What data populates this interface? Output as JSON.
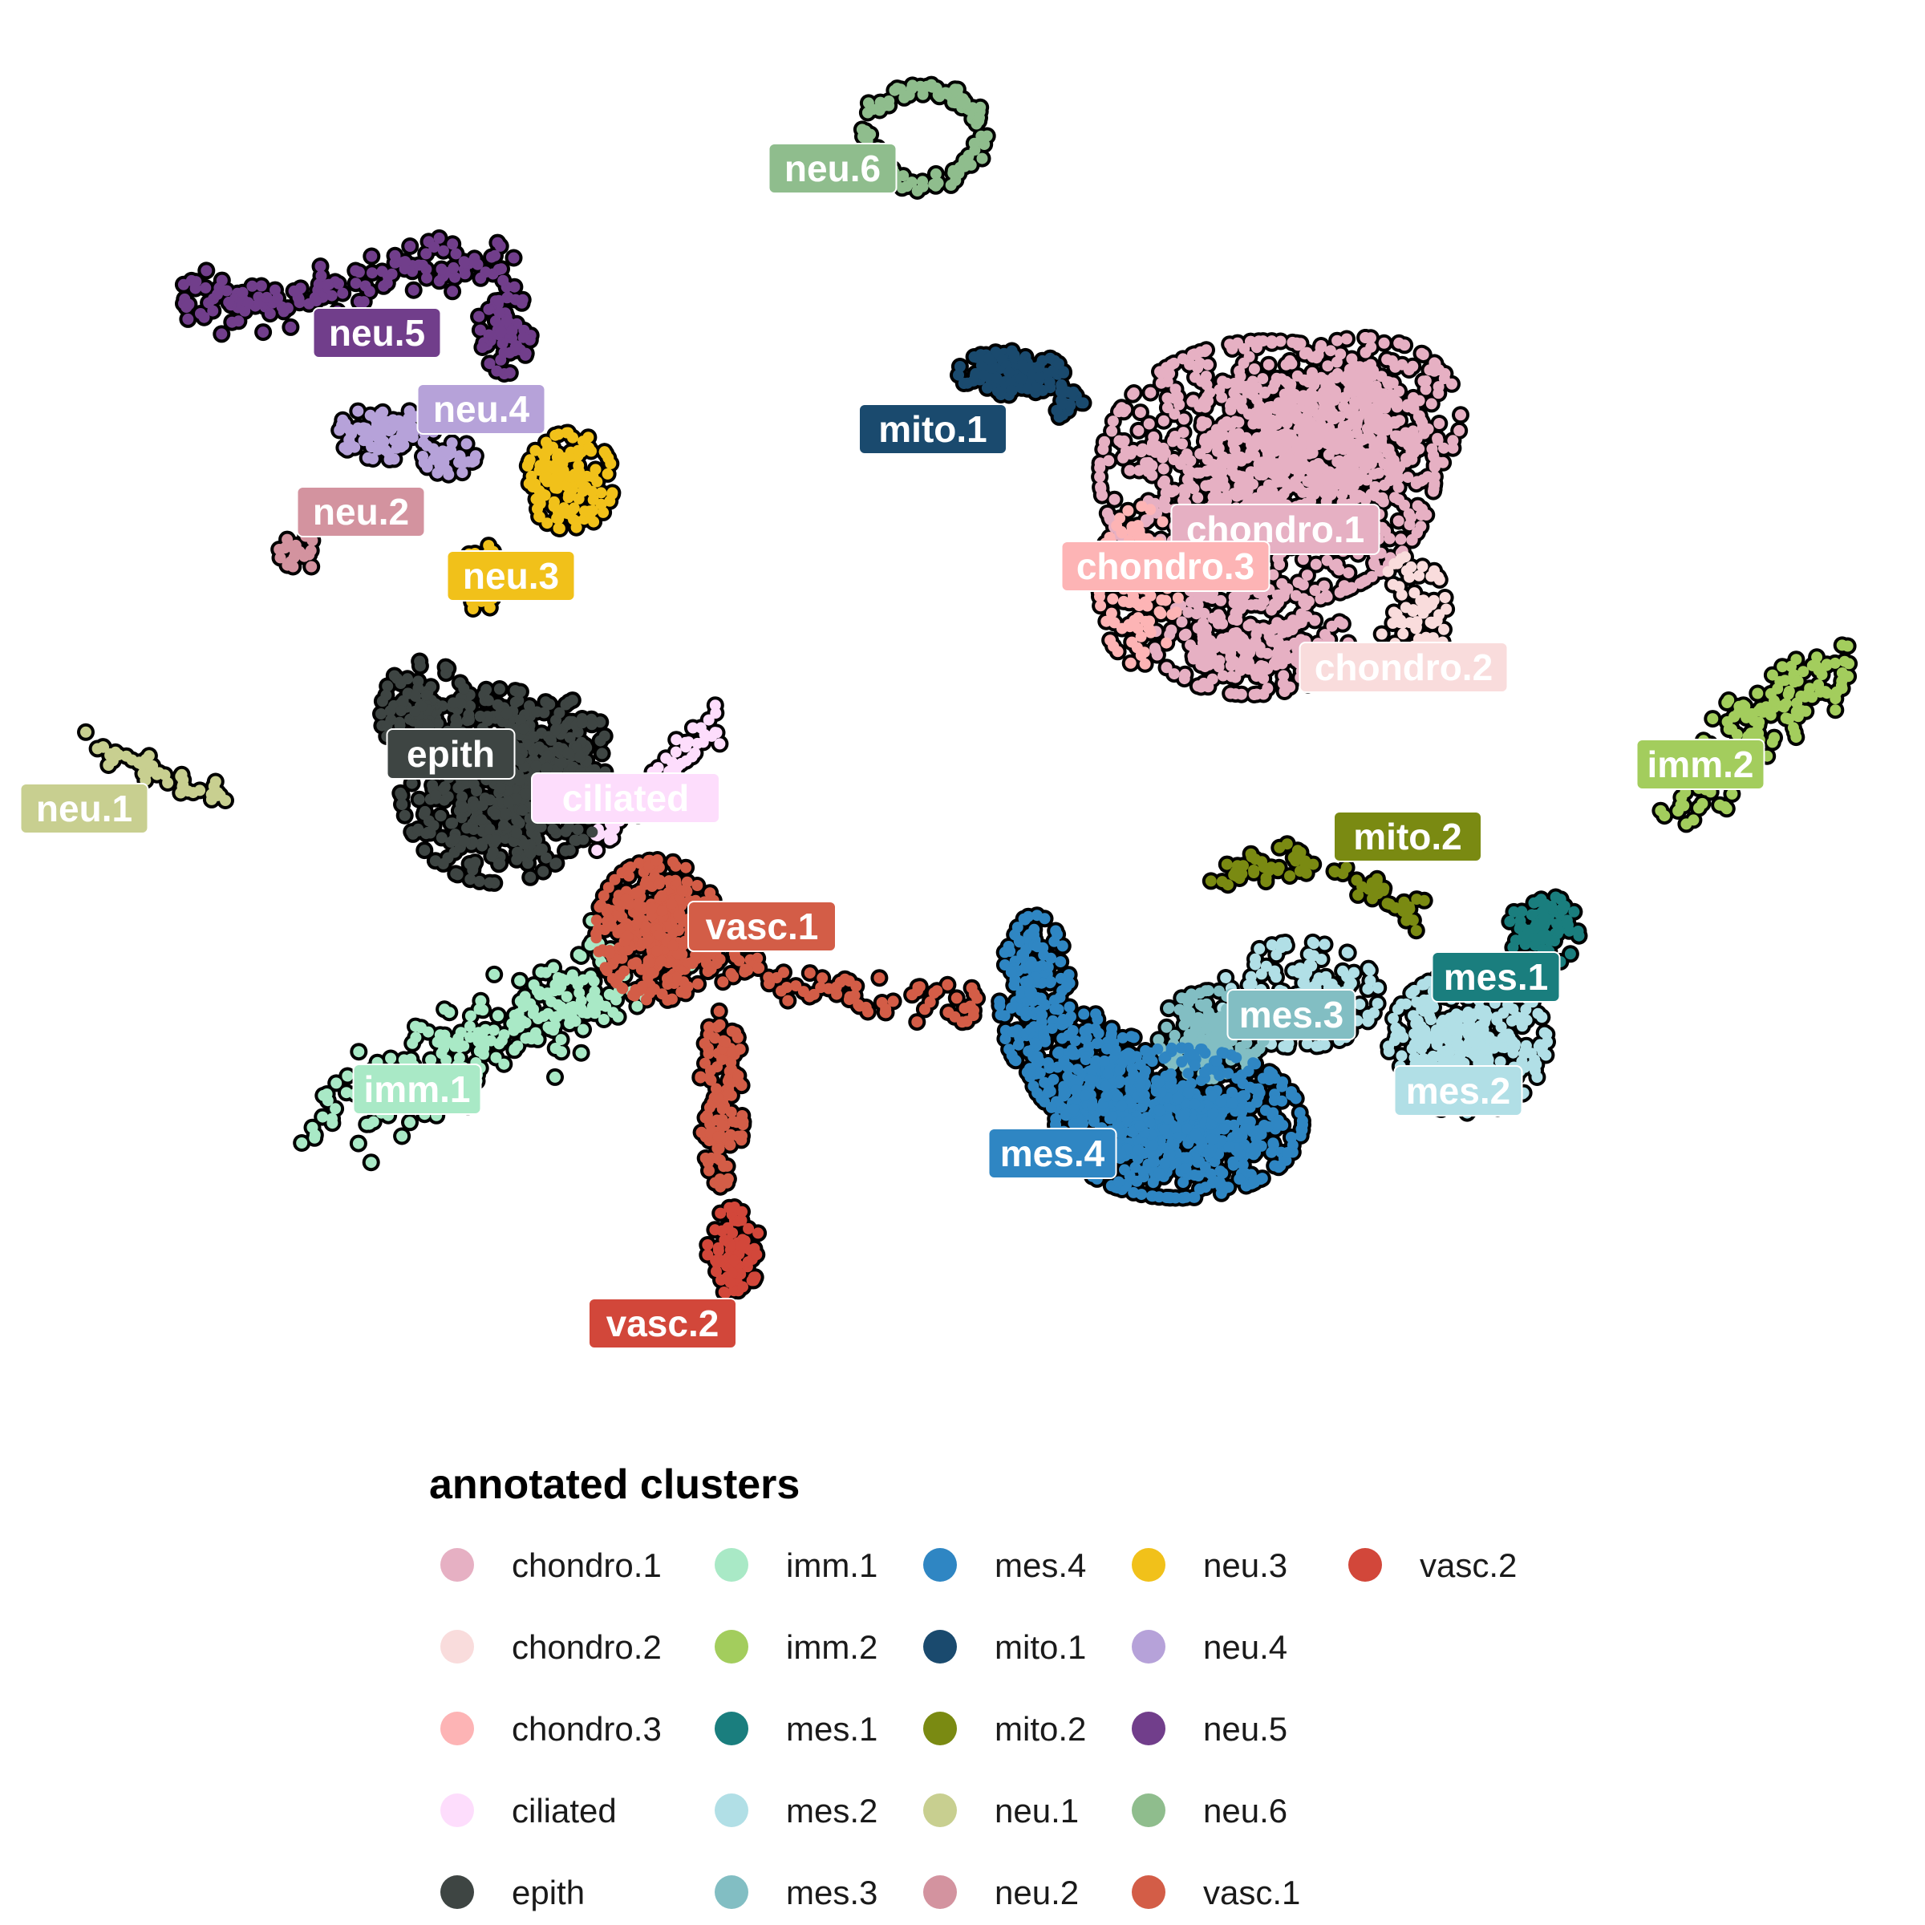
{
  "chart_data": {
    "type": "scatter",
    "title": "",
    "xlabel": "",
    "ylabel": "",
    "axes_visible": false,
    "grid": false,
    "legend": {
      "title": "annotated clusters",
      "placement": "bottom",
      "columns": 5
    },
    "clusters": [
      {
        "name": "chondro.1",
        "color": "#E6B0C3",
        "label_text": "#ffffff"
      },
      {
        "name": "chondro.2",
        "color": "#F9DCDC",
        "label_text": "#ffffff"
      },
      {
        "name": "chondro.3",
        "color": "#FDB4B5",
        "label_text": "#ffffff"
      },
      {
        "name": "ciliated",
        "color": "#FDDDFC",
        "label_text": "#ffffff"
      },
      {
        "name": "epith",
        "color": "#3E4543",
        "label_text": "#ffffff"
      },
      {
        "name": "imm.1",
        "color": "#A9E9C6",
        "label_text": "#ffffff"
      },
      {
        "name": "imm.2",
        "color": "#A3CD5D",
        "label_text": "#ffffff"
      },
      {
        "name": "mes.1",
        "color": "#1A7E7E",
        "label_text": "#ffffff"
      },
      {
        "name": "mes.2",
        "color": "#B1DFE6",
        "label_text": "#ffffff"
      },
      {
        "name": "mes.3",
        "color": "#82BEC3",
        "label_text": "#ffffff"
      },
      {
        "name": "mes.4",
        "color": "#2F86C3",
        "label_text": "#ffffff"
      },
      {
        "name": "mito.1",
        "color": "#1A4A6E",
        "label_text": "#ffffff"
      },
      {
        "name": "mito.2",
        "color": "#7A8A12",
        "label_text": "#ffffff"
      },
      {
        "name": "neu.1",
        "color": "#C8CF90",
        "label_text": "#ffffff"
      },
      {
        "name": "neu.2",
        "color": "#D3939F",
        "label_text": "#ffffff"
      },
      {
        "name": "neu.3",
        "color": "#F1C11A",
        "label_text": "#ffffff"
      },
      {
        "name": "neu.4",
        "color": "#B6A2D9",
        "label_text": "#ffffff"
      },
      {
        "name": "neu.5",
        "color": "#713E8B",
        "label_text": "#ffffff"
      },
      {
        "name": "neu.6",
        "color": "#8FBD8D",
        "label_text": "#ffffff"
      },
      {
        "name": "vasc.1",
        "color": "#D35D47",
        "label_text": "#ffffff"
      },
      {
        "name": "vasc.2",
        "color": "#D2473A",
        "label_text": "#ffffff"
      }
    ]
  }
}
